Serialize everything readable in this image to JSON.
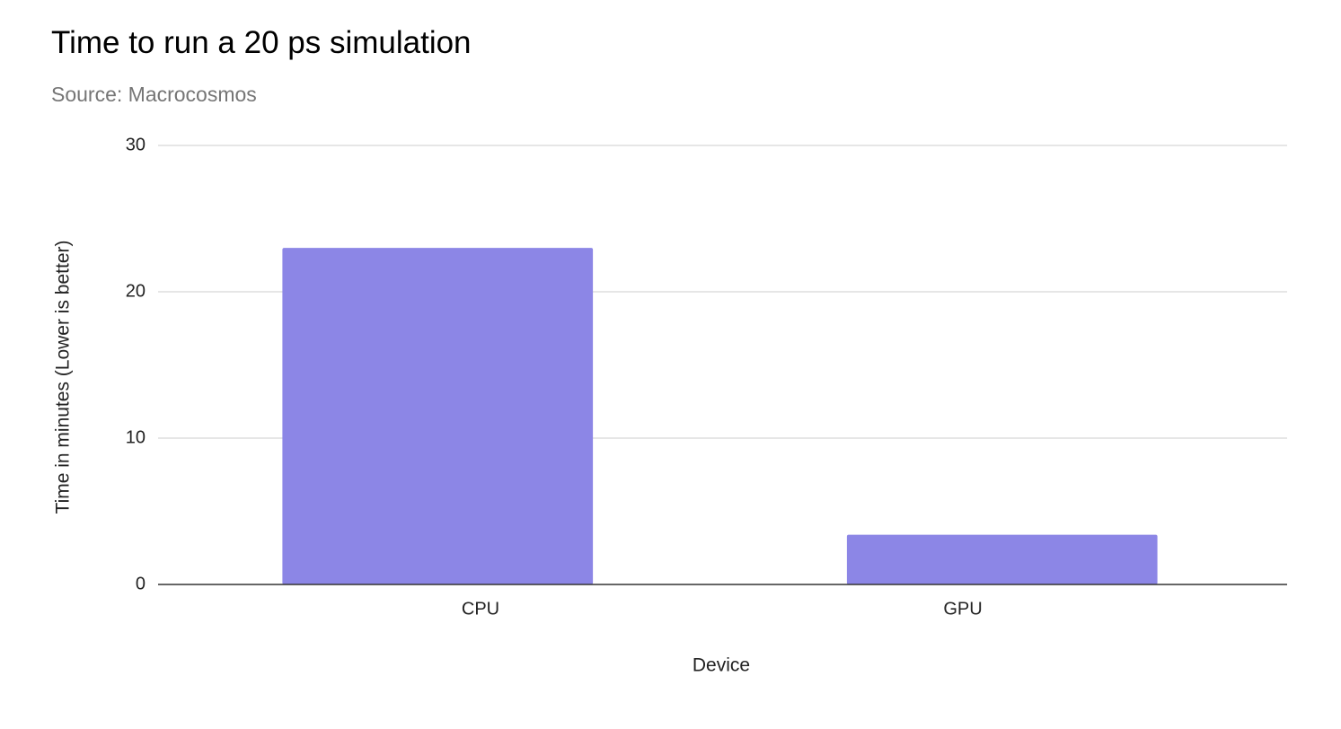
{
  "chart_data": {
    "type": "bar",
    "title": "Time to run a 20 ps simulation",
    "subtitle": "Source: Macrocosmos",
    "xlabel": "Device",
    "ylabel": "Time in minutes (Lower is better)",
    "categories": [
      "CPU",
      "GPU"
    ],
    "values": [
      23,
      3.4
    ],
    "ylim": [
      0,
      30
    ],
    "yticks": [
      "0",
      "10",
      "20",
      "30"
    ],
    "grid": true,
    "legend": "none",
    "bar_color": "#8c86e6"
  }
}
